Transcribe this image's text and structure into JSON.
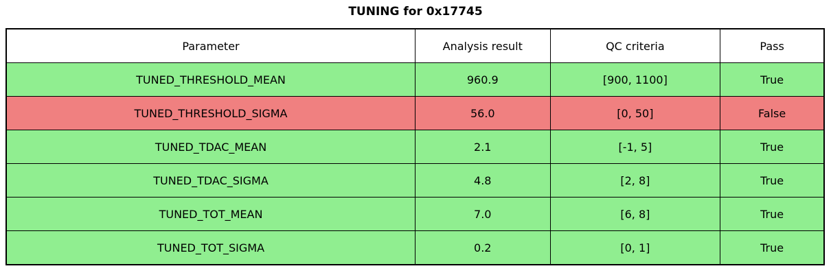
{
  "colors": {
    "pass_row": "#90ee90",
    "fail_row": "#f08080",
    "header_bg": "#ffffff",
    "border": "#000000",
    "text": "#000000"
  },
  "chart_data": {
    "type": "table",
    "title": "TUNING for 0x17745",
    "columns": [
      "Parameter",
      "Analysis result",
      "QC criteria",
      "Pass"
    ],
    "rows": [
      {
        "cells": [
          "TUNED_THRESHOLD_MEAN",
          "960.9",
          "[900, 1100]",
          "True"
        ],
        "status": "pass"
      },
      {
        "cells": [
          "TUNED_THRESHOLD_SIGMA",
          "56.0",
          "[0, 50]",
          "False"
        ],
        "status": "fail"
      },
      {
        "cells": [
          "TUNED_TDAC_MEAN",
          "2.1",
          "[-1, 5]",
          "True"
        ],
        "status": "pass"
      },
      {
        "cells": [
          "TUNED_TDAC_SIGMA",
          "4.8",
          "[2, 8]",
          "True"
        ],
        "status": "pass"
      },
      {
        "cells": [
          "TUNED_TOT_MEAN",
          "7.0",
          "[6, 8]",
          "True"
        ],
        "status": "pass"
      },
      {
        "cells": [
          "TUNED_TOT_SIGMA",
          "0.2",
          "[0, 1]",
          "True"
        ],
        "status": "pass"
      }
    ],
    "column_widths_pct": [
      50.0,
      16.5,
      20.8,
      12.7
    ],
    "layout": {
      "grid": true,
      "header_position": "top",
      "legend": "none"
    }
  }
}
